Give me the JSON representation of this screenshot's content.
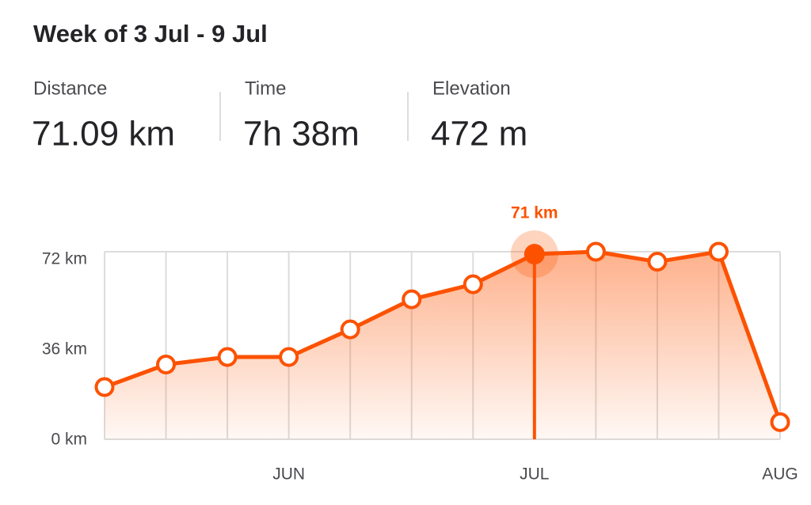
{
  "header": {
    "title": "Week of 3 Jul - 9 Jul"
  },
  "stats": [
    {
      "label": "Distance",
      "value": "71.09 km"
    },
    {
      "label": "Time",
      "value": "7h 38m"
    },
    {
      "label": "Elevation",
      "value": "472 m"
    }
  ],
  "chart_data": {
    "type": "line",
    "categories": [
      null,
      null,
      null,
      "JUN",
      null,
      null,
      null,
      "JUL",
      null,
      null,
      null,
      "AUG"
    ],
    "series": [
      {
        "color": "#fc5200",
        "values": [
          18,
          27,
          30,
          30,
          41,
          53,
          59,
          71,
          72,
          68,
          72,
          4
        ],
        "value_labels": [
          null,
          null,
          null,
          null,
          null,
          null,
          null,
          "71 km",
          null,
          null,
          null,
          null
        ]
      }
    ],
    "ylim": [
      0,
      72
    ],
    "yticks": [
      {
        "value": 0,
        "label": "0 km"
      },
      {
        "value": 36,
        "label": "36 km"
      },
      {
        "value": 72,
        "label": "72 km"
      }
    ],
    "grid": true
  }
}
